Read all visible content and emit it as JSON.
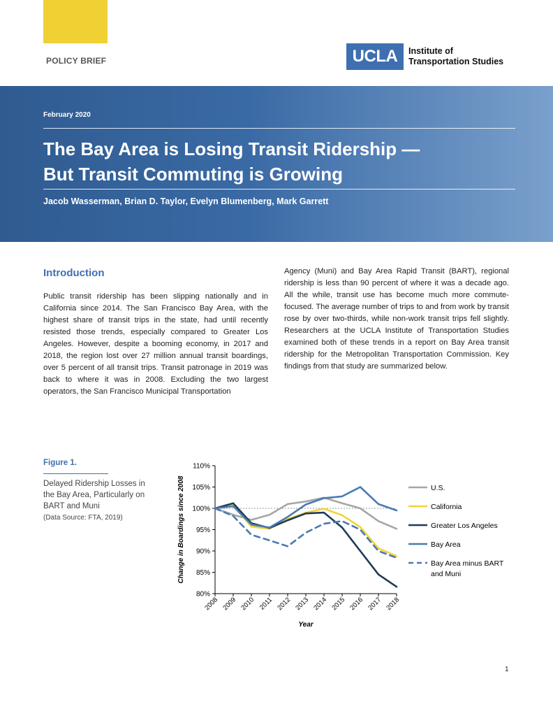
{
  "header": {
    "doc_type": "POLICY BRIEF",
    "logo_text": "UCLA",
    "institute_line1": "Institute of",
    "institute_line2": "Transportation Studies"
  },
  "banner": {
    "date": "February 2020",
    "title_line1": "The Bay Area is Losing Transit Ridership —",
    "title_line2": "But Transit Commuting is Growing",
    "authors": "Jacob Wasserman, Brian D. Taylor, Evelyn Blumenberg, Mark Garrett"
  },
  "intro": {
    "heading": "Introduction",
    "col1": "Public transit ridership has been slipping nationally and in California since 2014. The San Francisco Bay Area, with the highest share of transit trips in the state, had until recently resisted those trends, especially compared to Greater Los Angeles. However, despite a booming economy, in 2017 and 2018, the region lost over 27 million annual transit boardings, over 5 percent of all transit trips. Transit patronage in 2019 was back to where it was in 2008. Excluding the two largest operators, the San Francisco Municipal Transportation",
    "col2": "Agency (Muni) and Bay Area Rapid Transit (BART), regional ridership is less than 90 percent of where it was a decade ago. All the while, transit use has become much more commute-focused. The average number of trips to and from work by transit rose by over two-thirds, while non-work transit trips fell slightly. Researchers at the UCLA Institute of Transportation Studies examined both of these trends in a report on Bay Area transit ridership for the Metropolitan Transportation Commission. Key findings from that study are summarized below."
  },
  "figure": {
    "label": "Figure 1.",
    "caption": "Delayed Ridership Losses in the Bay Area, Particularly on BART and Muni",
    "source": "(Data Source: FTA, 2019)"
  },
  "chart_data": {
    "type": "line",
    "xlabel": "Year",
    "ylabel": "Change in Boardings since 2008",
    "ylim": [
      80,
      110
    ],
    "y_ticks": [
      "80%",
      "85%",
      "90%",
      "95%",
      "100%",
      "105%",
      "110%"
    ],
    "x": [
      "2008",
      "2009",
      "2010",
      "2011",
      "2012",
      "2013",
      "2014",
      "2015",
      "2016",
      "2017",
      "2018"
    ],
    "reference_line": 100,
    "legend_position": "right",
    "series": [
      {
        "name": "U.S.",
        "color": "#a6a6a6",
        "dash": false,
        "values": [
          100,
          98.5,
          97.3,
          98.5,
          101,
          101.6,
          102.5,
          101.2,
          100,
          97,
          95.2
        ]
      },
      {
        "name": "California",
        "color": "#f2d33a",
        "dash": false,
        "values": [
          100,
          100.7,
          95.7,
          95.2,
          97.5,
          99,
          99.9,
          98.4,
          95.6,
          90.6,
          88.8
        ]
      },
      {
        "name": "Greater Los Angeles",
        "color": "#1f3b57",
        "dash": false,
        "values": [
          100,
          101.2,
          96.5,
          95.4,
          97.2,
          98.8,
          99,
          95.5,
          90,
          84.5,
          81.6
        ]
      },
      {
        "name": "Bay Area",
        "color": "#4a7ab3",
        "dash": false,
        "values": [
          100,
          100.5,
          96.2,
          95.5,
          98,
          100.9,
          102.4,
          102.8,
          105,
          101,
          99.5
        ]
      },
      {
        "name": "Bay Area minus BART and Muni",
        "color": "#4a7ab3",
        "dash": true,
        "values": [
          100,
          98.2,
          93.8,
          92.5,
          91.1,
          94.3,
          96.4,
          97,
          95,
          90,
          88.4
        ]
      }
    ]
  },
  "page_number": "1"
}
